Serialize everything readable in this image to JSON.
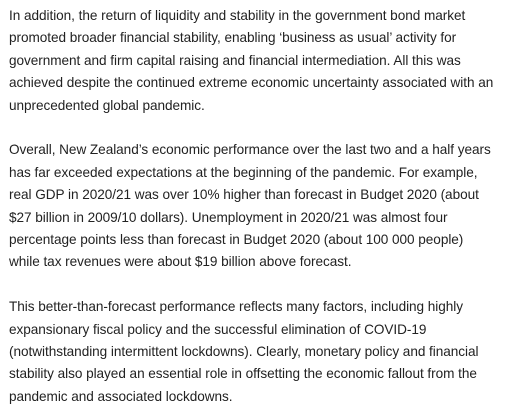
{
  "paragraphs": [
    {
      "lines": [
        "In addition, the return of liquidity and stability in the government bond market",
        "promoted broader financial stability, enabling ‘business as usual’ activity for",
        "government and firm capital raising and financial intermediation. All this was",
        "achieved despite the continued extreme economic uncertainty associated with an",
        "unprecedented global pandemic."
      ]
    },
    {
      "lines": [
        "Overall, New Zealand’s economic performance over the last two and a half years",
        "has far exceeded expectations at the beginning of the pandemic. For example,",
        "real GDP in 2020/21 was over 10% higher than forecast in Budget 2020 (about",
        "$27 billion in 2009/10 dollars). Unemployment in 2020/21 was almost four",
        "percentage points less than forecast in Budget 2020 (about 100 000 people)",
        "while tax revenues were about $19 billion above forecast."
      ]
    },
    {
      "lines": [
        "This better-than-forecast performance reflects many factors, including highly",
        "expansionary fiscal policy and the successful elimination of COVID-19",
        "(notwithstanding intermittent lockdowns). Clearly, monetary policy and financial",
        "stability also played an essential role in offsetting the economic fallout from the",
        "pandemic and associated lockdowns."
      ]
    }
  ]
}
